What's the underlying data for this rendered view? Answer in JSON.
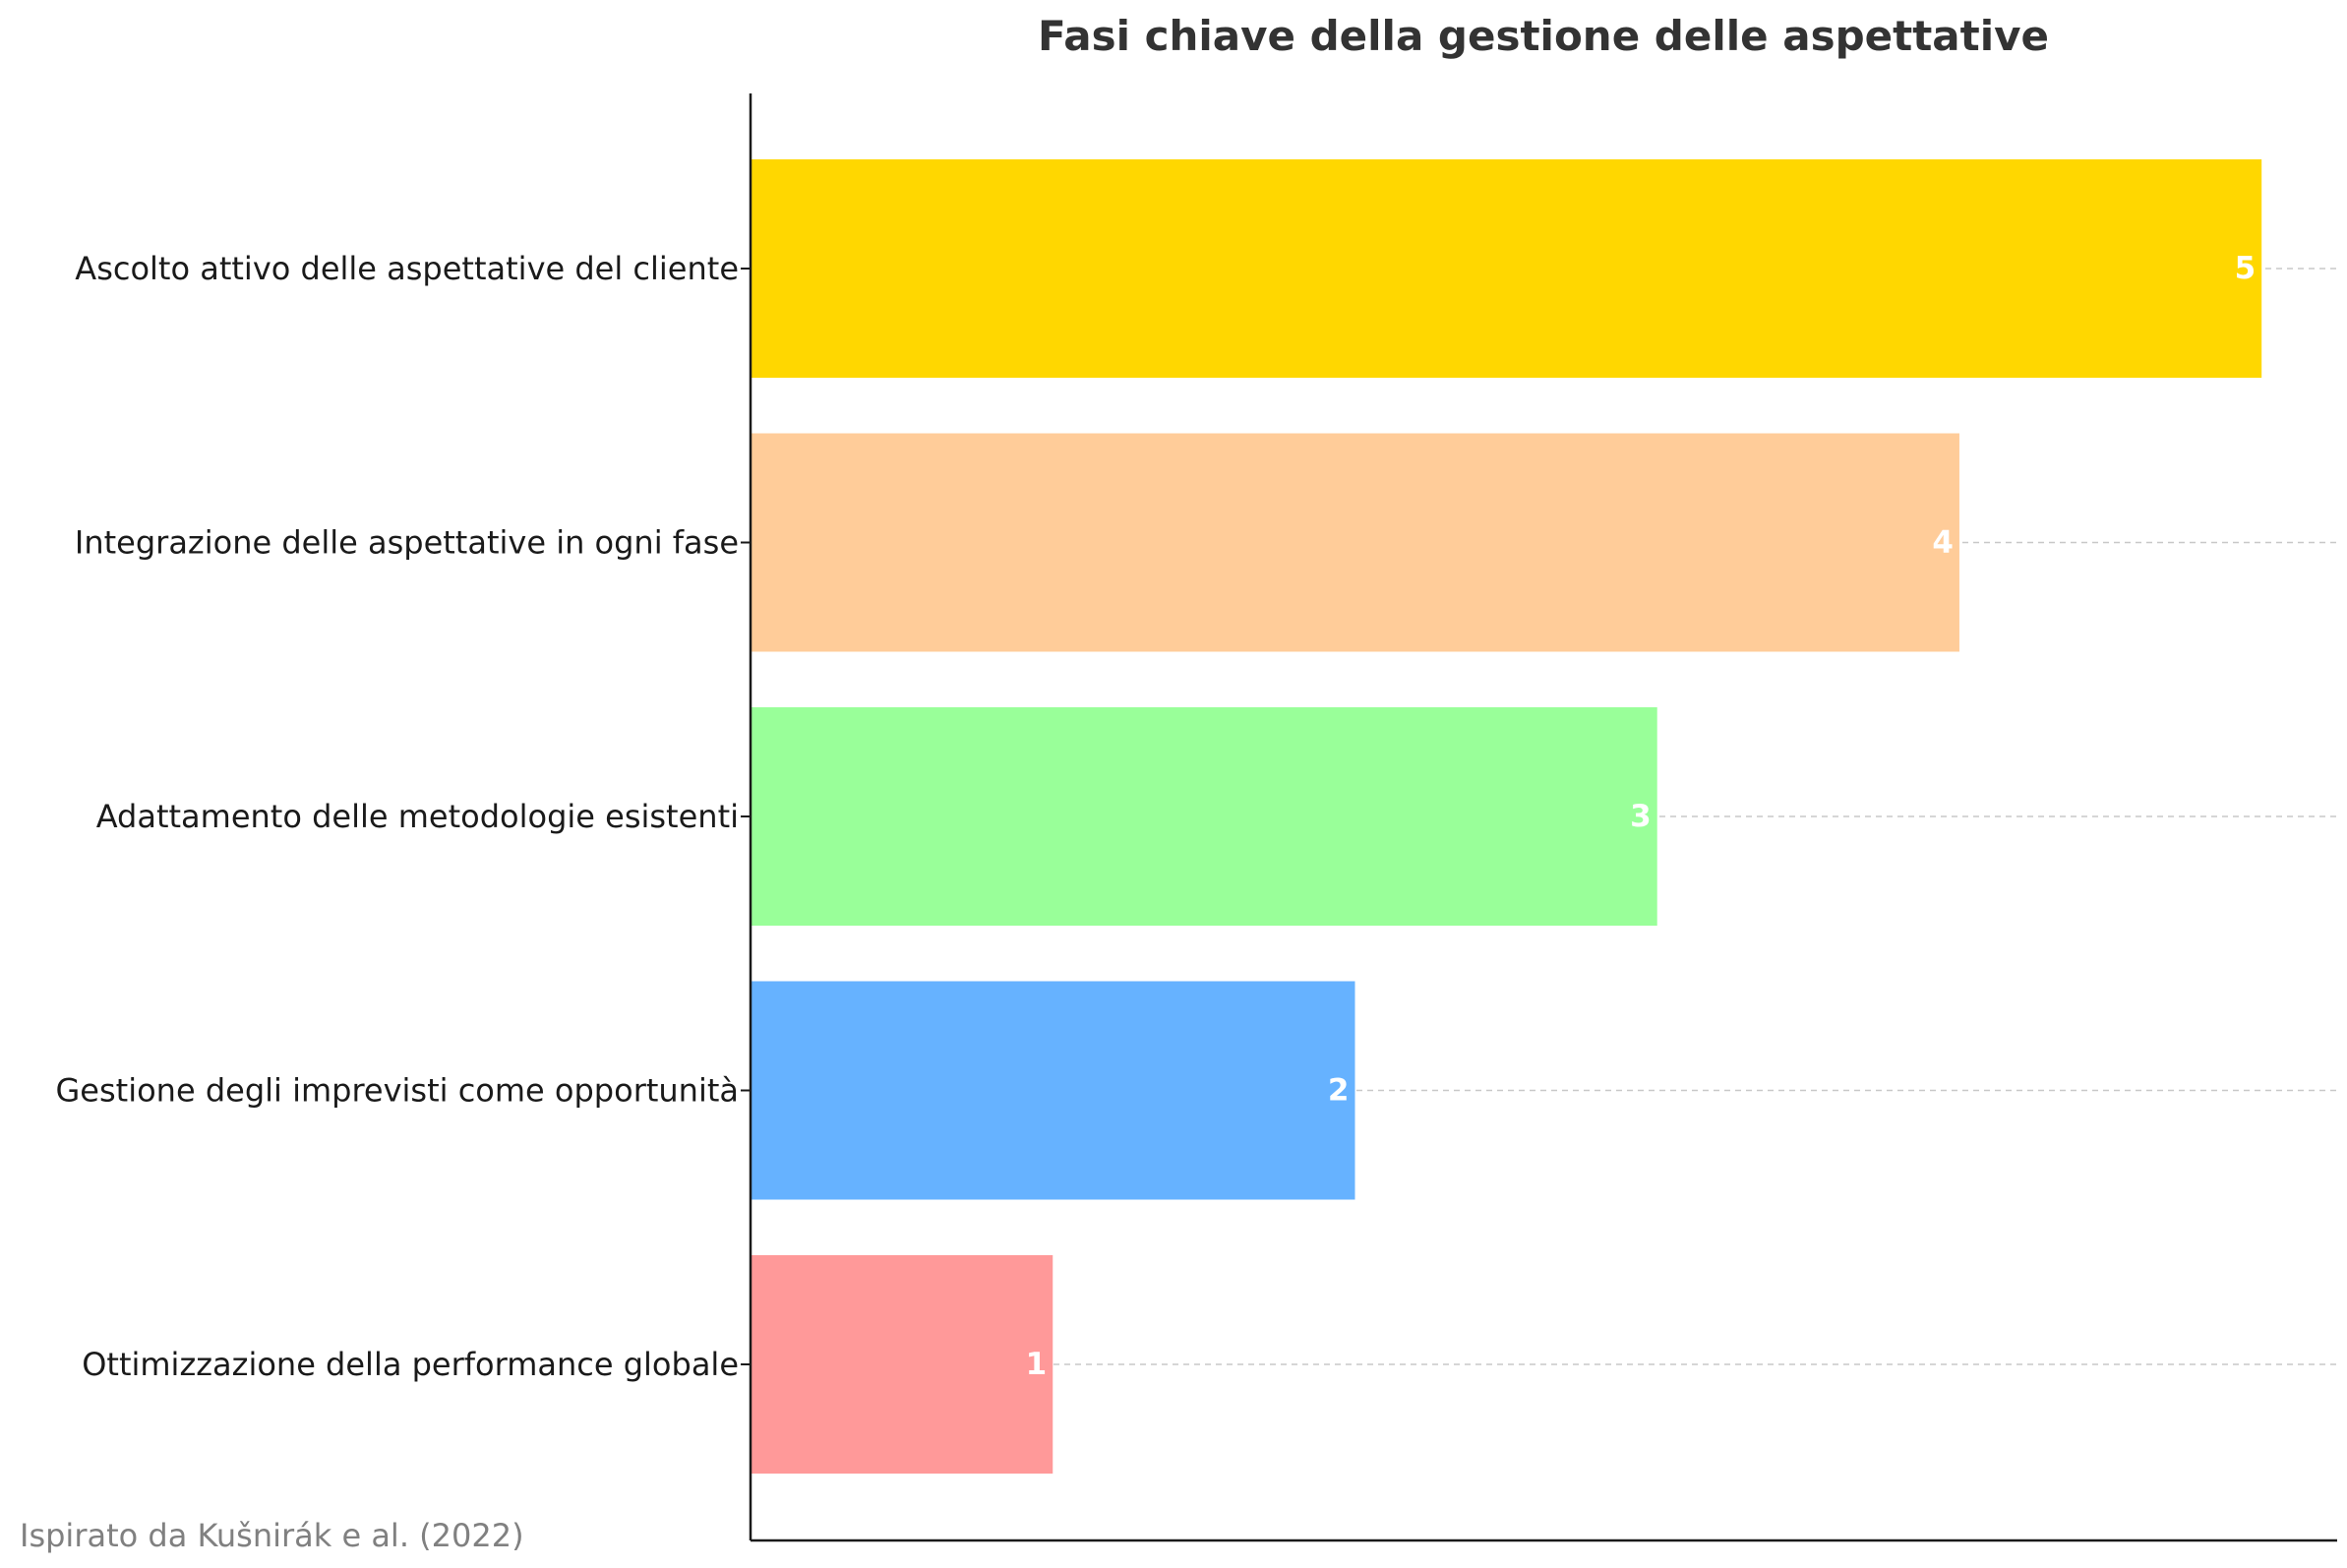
{
  "chart_data": {
    "type": "bar",
    "orientation": "horizontal",
    "title": "Fasi chiave della gestione delle aspettative",
    "xlabel": "",
    "ylabel": "",
    "categories": [
      "Ascolto attivo delle aspettative del cliente",
      "Integrazione delle aspettative in ogni fase",
      "Adattamento delle metodologie esistenti",
      "Gestione degli imprevisti come opportunità",
      "Ottimizzazione della performance globale"
    ],
    "values": [
      5,
      4,
      3,
      2,
      1
    ],
    "colors": [
      "#FFD700",
      "#FFCC99",
      "#99FF99",
      "#66B2FF",
      "#FF9999"
    ],
    "xlim": [
      0,
      5.25
    ],
    "grid": "horizontal dashed at category positions",
    "value_labels": true,
    "annotation": "Ispirato da Kušnirák e al. (2022)"
  }
}
